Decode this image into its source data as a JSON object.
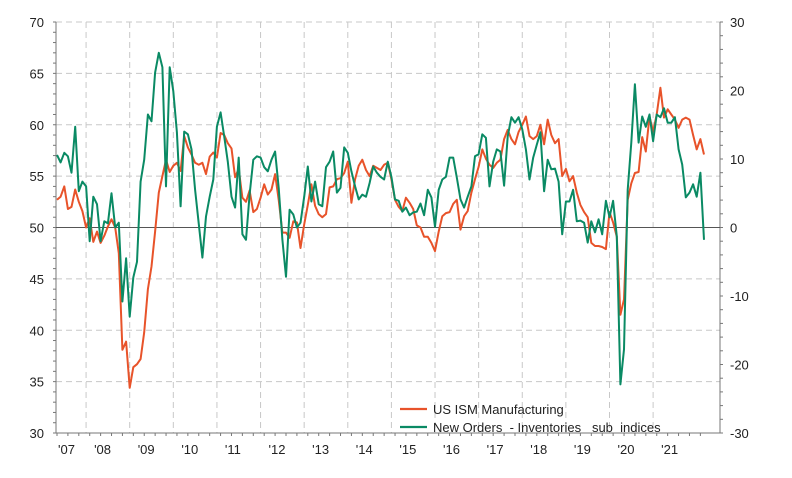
{
  "chart_data": {
    "type": "line",
    "title": "",
    "start_month": "2007-05",
    "frequency": "monthly",
    "x_tick_labels": [
      "'07",
      "'08",
      "'09",
      "'10",
      "'11",
      "'12",
      "'13",
      "'14",
      "'15",
      "'16",
      "'17",
      "'18",
      "'19",
      "'20",
      "'21"
    ],
    "left_axis": {
      "ylim": [
        30,
        70
      ],
      "ticks": [
        30,
        35,
        40,
        45,
        50,
        55,
        60,
        65,
        70
      ]
    },
    "right_axis": {
      "ylim": [
        -30,
        30
      ],
      "ticks": [
        -30,
        -20,
        -10,
        0,
        10,
        20,
        30
      ]
    },
    "grid": true,
    "legend_position": "bottom-right",
    "series": [
      {
        "name": "US ISM Manufacturing",
        "axis": "left",
        "color": "#e8532a",
        "values": [
          52.7,
          53,
          54,
          51.8,
          52,
          53.7,
          52.5,
          51.6,
          50,
          50.9,
          48.6,
          49.6,
          48.5,
          49.2,
          50.1,
          50.8,
          50,
          47.5,
          38.1,
          38.9,
          34.4,
          36.4,
          36.7,
          37.2,
          39.8,
          44,
          46.2,
          49.6,
          53.4,
          55,
          56.6,
          55.4,
          56,
          56.3,
          55.5,
          58.9,
          57.8,
          57.1,
          56.3,
          56.1,
          56.3,
          55.2,
          56.9,
          57.3,
          56.8,
          59.2,
          59,
          58.2,
          57.7,
          54.9,
          55.7,
          52.9,
          52.5,
          53.6,
          51.5,
          51.8,
          52.9,
          54.2,
          53.2,
          53.7,
          55.2,
          52.7,
          49.5,
          49.5,
          49,
          50.6,
          50.5,
          48,
          50.3,
          52.2,
          54.2,
          52.1,
          51.3,
          51,
          51.3,
          53.9,
          54,
          54.7,
          54.8,
          55.3,
          56.4,
          52.4,
          54.7,
          56,
          56.6,
          55.6,
          55,
          56,
          55.8,
          55.6,
          56.1,
          56.3,
          54.7,
          52.7,
          52,
          51.6,
          52.9,
          52.4,
          51.8,
          50.2,
          50,
          49.1,
          49.1,
          48.5,
          47.7,
          49.6,
          51.1,
          51.4,
          51.5,
          52.3,
          52.7,
          49.8,
          51.1,
          51.6,
          53.4,
          54.7,
          55.9,
          57.6,
          56.7,
          56.1,
          55.8,
          56.3,
          56.6,
          58.6,
          59.5,
          58.6,
          58.1,
          59.3,
          60,
          60.8,
          58.9,
          58.6,
          58.9,
          60,
          58.1,
          60.5,
          59,
          58.2,
          58.6,
          55,
          55.7,
          54.5,
          55,
          53.4,
          52.2,
          51.5,
          51,
          48.5,
          48.2,
          48.2,
          48.1,
          47.9,
          51.5,
          50.5,
          49.1,
          41.5,
          43,
          52.7,
          54.3,
          55.3,
          55.4,
          58.8,
          57.4,
          60.8,
          59.3,
          61,
          63.6,
          60.7,
          61.5,
          61,
          60.5,
          59.7,
          60.5,
          60.7,
          60.5,
          59,
          57.6,
          58.6,
          57.1
        ]
      },
      {
        "name": "New Orders  - Inventories   sub  indices",
        "axis": "right",
        "color": "#0a8a64",
        "values": [
          10.6,
          9.5,
          10.9,
          10.4,
          8,
          14.7,
          5.3,
          6.7,
          6,
          -2,
          4.5,
          3.4,
          -2,
          0.9,
          0.6,
          5,
          0,
          0.7,
          -10.8,
          -4.5,
          -13,
          -7.3,
          -5,
          6.7,
          9.9,
          16.5,
          15.5,
          22.6,
          25.5,
          23.4,
          6,
          23.4,
          19.9,
          13.9,
          3.1,
          14,
          13.6,
          11.4,
          5.5,
          0.5,
          -4.4,
          1.6,
          4.5,
          7,
          14.7,
          16.8,
          13.3,
          9.6,
          4.5,
          2.9,
          10.2,
          -1,
          -1.8,
          4.8,
          9.9,
          10.4,
          10.2,
          8.8,
          8.2,
          9.9,
          11.1,
          5.8,
          -1.8,
          -7.2,
          2.6,
          1.9,
          0,
          0.7,
          4.5,
          8.9,
          3.8,
          6.7,
          3.4,
          3.1,
          8.8,
          9.6,
          11.1,
          5.1,
          5.8,
          11.7,
          10.9,
          8.2,
          6,
          4.1,
          4.8,
          4.5,
          6.5,
          8.9,
          8,
          7.4,
          7,
          9.6,
          7.4,
          4.1,
          3.9,
          2.3,
          2.9,
          1.8,
          2.2,
          2.3,
          3.5,
          1.8,
          5.5,
          4.4,
          0.1,
          5.5,
          7,
          7.4,
          10.2,
          10.2,
          7.3,
          4.1,
          2.9,
          4.5,
          6,
          10.4,
          10.7,
          13.6,
          13.1,
          6,
          9.6,
          11.4,
          11.1,
          6.1,
          13.3,
          16.1,
          15.3,
          16.1,
          14.3,
          11.4,
          7,
          10.2,
          12.1,
          13.9,
          5.3,
          9.9,
          8.5,
          8.6,
          6.7,
          -1,
          3.8,
          3.8,
          5.5,
          0.9,
          1,
          0.7,
          -2.2,
          0.9,
          -0.7,
          1.2,
          -1,
          3.9,
          1.5,
          3.9,
          -1.3,
          -22.9,
          -17.8,
          5.5,
          12.4,
          20.9,
          12.4,
          16.2,
          14.7,
          16.5,
          12.6,
          16.5,
          16.1,
          17.4,
          15.3,
          15.3,
          16.1,
          11.4,
          9.2,
          4.4,
          5.1,
          6.3,
          4.5,
          8,
          -1.8
        ]
      }
    ]
  }
}
